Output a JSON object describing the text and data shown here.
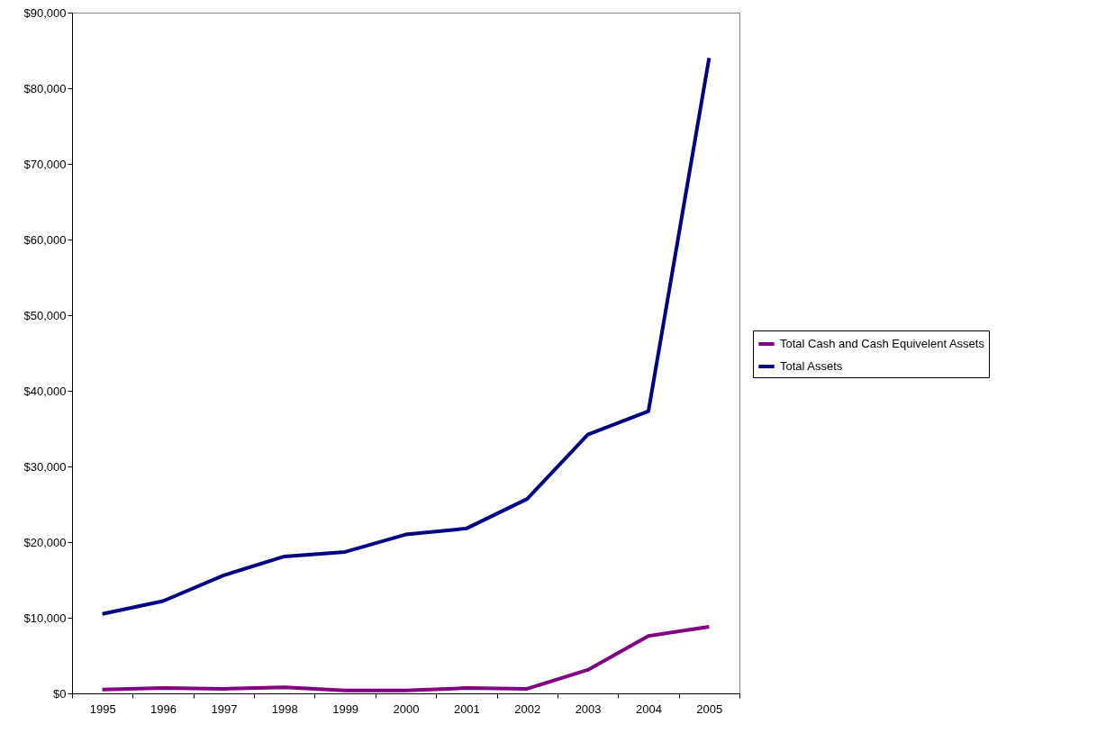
{
  "chart_data": {
    "type": "line",
    "categories": [
      "1995",
      "1996",
      "1997",
      "1998",
      "1999",
      "2000",
      "2001",
      "2002",
      "2003",
      "2004",
      "2005"
    ],
    "series": [
      {
        "name": "Total Cash and Cash Equivelent Assets",
        "color": "#800080",
        "values": [
          500,
          700,
          600,
          800,
          400,
          400,
          700,
          600,
          3100,
          7600,
          8800
        ]
      },
      {
        "name": "Total Assets",
        "color": "#000080",
        "values": [
          10500,
          12200,
          15600,
          18100,
          18700,
          21000,
          21800,
          25700,
          34200,
          37300,
          84000
        ]
      }
    ],
    "ylim": [
      0,
      90000
    ],
    "yticks": [
      {
        "value": 0,
        "label": "$0"
      },
      {
        "value": 10000,
        "label": "$10,000"
      },
      {
        "value": 20000,
        "label": "$20,000"
      },
      {
        "value": 30000,
        "label": "$30,000"
      },
      {
        "value": 40000,
        "label": "$40,000"
      },
      {
        "value": 50000,
        "label": "$50,000"
      },
      {
        "value": 60000,
        "label": "$60,000"
      },
      {
        "value": 70000,
        "label": "$70,000"
      },
      {
        "value": 80000,
        "label": "$80,000"
      },
      {
        "value": 90000,
        "label": "$90,000"
      }
    ],
    "grid": false,
    "legend": "right",
    "marker": "none",
    "line_style": "solid"
  }
}
